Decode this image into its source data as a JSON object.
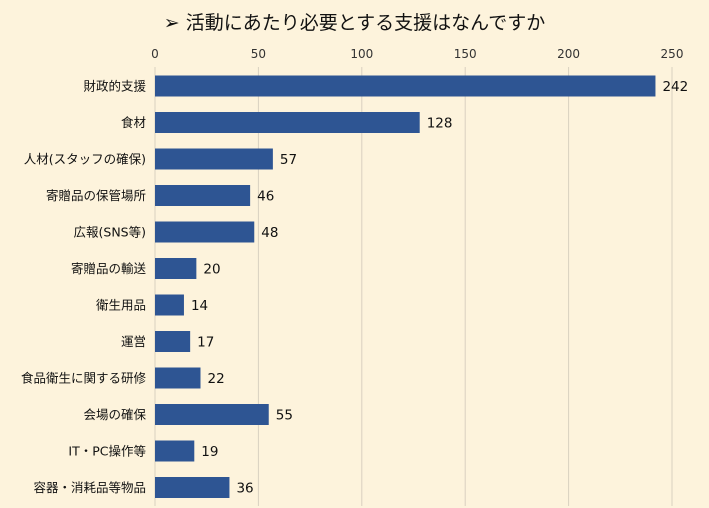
{
  "title": "➢ 活動にあたり必要とする支援はなんですか",
  "colors": {
    "background": "#fdf3dc",
    "bar": "#2e5593",
    "grid": "#d9d0c0",
    "text": "#111111"
  },
  "chart_data": {
    "type": "bar",
    "orientation": "horizontal",
    "title": "➢ 活動にあたり必要とする支援はなんですか",
    "xlabel": "",
    "ylabel": "",
    "xlim": [
      0,
      250
    ],
    "x_ticks": [
      0,
      50,
      100,
      150,
      200,
      250
    ],
    "x_tick_labels": [
      "0",
      "50",
      "100",
      "150",
      "200",
      "250"
    ],
    "x_axis_position": "top",
    "grid": true,
    "legend": false,
    "categories": [
      "財政的支援",
      "食材",
      "人材(スタッフの確保)",
      "寄贈品の保管場所",
      "広報(SNS等)",
      "寄贈品の輸送",
      "衛生用品",
      "運営",
      "食品衛生に関する研修",
      "会場の確保",
      "IT・PC操作等",
      "容器・消耗品等物品"
    ],
    "values": [
      242,
      128,
      57,
      46,
      48,
      20,
      14,
      17,
      22,
      55,
      19,
      36
    ],
    "data_labels": [
      "242",
      "128",
      "57",
      "46",
      "48",
      "20",
      "14",
      "17",
      "22",
      "55",
      "19",
      "36"
    ]
  }
}
